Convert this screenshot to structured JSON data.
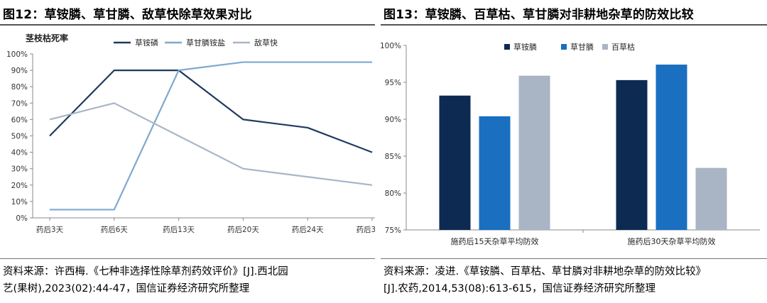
{
  "left": {
    "figure_title": "图12：草铵膦、草甘膦、敌草快除草效果对比",
    "source_line1": "资料来源：许西梅.《七种非选择性除草剂药效评价》[J].西北园",
    "source_line2": "艺(果树),2023(02):44-47，国信证券经济研究所整理"
  },
  "right": {
    "figure_title": "图13：草铵膦、百草枯、草甘膦对非耕地杂草的防效比较",
    "source_line1": "资料来源：凌进.《草铵膦、百草枯、草甘膦对非耕地杂草的防效比较》",
    "source_line2": "[J].农药,2014,53(08):613-615，国信证券经济研究所整理"
  },
  "chart_data": [
    {
      "type": "line",
      "title": "",
      "ylabel": "茎枝枯死率",
      "xlabel": "",
      "categories": [
        "药后3天",
        "药后6天",
        "药后13天",
        "药后20天",
        "药后24天",
        "药后30天"
      ],
      "y_ticks": [
        "0%",
        "10%",
        "20%",
        "30%",
        "40%",
        "50%",
        "60%",
        "70%",
        "80%",
        "90%",
        "100%"
      ],
      "ylim": [
        0,
        100
      ],
      "legend_position": "top",
      "series": [
        {
          "name": "草铵磷",
          "color": "#1f3a5f",
          "values": [
            50,
            90,
            90,
            60,
            55,
            40
          ]
        },
        {
          "name": "草甘膦铵盐",
          "color": "#7fa8cf",
          "values": [
            5,
            5,
            90,
            95,
            95,
            95
          ]
        },
        {
          "name": "敌草快",
          "color": "#a8b6c8",
          "values": [
            60,
            70,
            50,
            30,
            25,
            20
          ]
        }
      ]
    },
    {
      "type": "bar",
      "title": "",
      "xlabel": "",
      "ylabel": "",
      "categories": [
        "施药后15天杂草平均防效",
        "施药后30天杂草平均防效"
      ],
      "y_ticks": [
        "75%",
        "80%",
        "85%",
        "90%",
        "95%",
        "100%"
      ],
      "ylim": [
        75,
        100
      ],
      "legend_position": "top",
      "series": [
        {
          "name": "草铵膦",
          "color": "#0d2a52",
          "values": [
            93.2,
            95.3
          ]
        },
        {
          "name": "草甘膦",
          "color": "#1a6fc0",
          "values": [
            90.4,
            97.4
          ]
        },
        {
          "name": "百草枯",
          "color": "#a9b5c4",
          "values": [
            95.9,
            83.4
          ]
        }
      ]
    }
  ]
}
